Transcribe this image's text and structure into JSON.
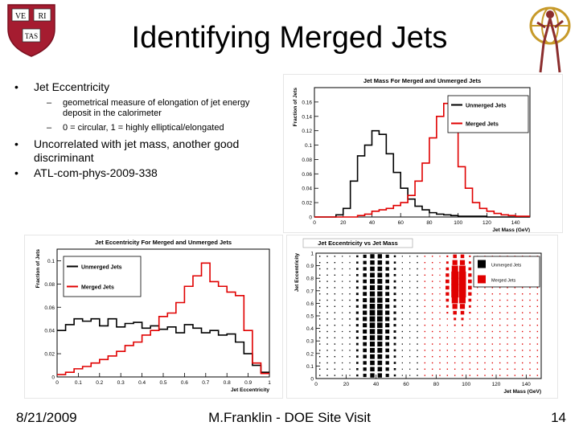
{
  "slide": {
    "title": "Identifying Merged Jets",
    "footer_date": "8/21/2009",
    "footer_center": "M.Franklin - DOE Site Visit",
    "page_number": "14"
  },
  "logo": {
    "shield_top_left": "VE",
    "shield_top_right": "RI",
    "shield_bottom": "TAS"
  },
  "bullets": [
    {
      "text": "Jet Eccentricity",
      "subitems": [
        "geometrical measure of elongation of jet energy deposit in the calorimeter",
        "0 = circular, 1 = highly elliptical/elongated"
      ]
    },
    {
      "text": "Uncorrelated with jet mass, another good discriminant"
    },
    {
      "text": "ATL-com-phys-2009-338"
    }
  ],
  "colors": {
    "unmerged": "#000000",
    "merged": "#e00000"
  },
  "chart_data": [
    {
      "type": "line",
      "title": "Jet Mass For Merged and Unmerged Jets",
      "xlabel": "Jet Mass (GeV)",
      "ylabel": "Fraction of Jets",
      "xlim": [
        0,
        150
      ],
      "ylim": [
        0,
        0.18
      ],
      "xticks": [
        0,
        20,
        40,
        60,
        80,
        100,
        120,
        140
      ],
      "xtick_labels": [
        "0",
        "20",
        "40",
        "60",
        "80",
        "100",
        "120",
        "140"
      ],
      "yticks": [
        0,
        0.02,
        0.04,
        0.06,
        0.08,
        0.1,
        0.12,
        0.14,
        0.16
      ],
      "ytick_labels": [
        "0",
        "0.02",
        "0.04",
        "0.06",
        "0.08",
        "0.1",
        "0.12",
        "0.14",
        "0.16"
      ],
      "bin_width": 5,
      "x": [
        0,
        5,
        10,
        15,
        20,
        25,
        30,
        35,
        40,
        45,
        50,
        55,
        60,
        65,
        70,
        75,
        80,
        85,
        90,
        95,
        100,
        105,
        110,
        115,
        120,
        125,
        130,
        135,
        140,
        145
      ],
      "series": [
        {
          "name": "Unmerged Jets",
          "color": "#000000",
          "values": [
            0,
            0,
            0,
            0.003,
            0.012,
            0.05,
            0.085,
            0.1,
            0.12,
            0.115,
            0.088,
            0.062,
            0.04,
            0.025,
            0.015,
            0.01,
            0.006,
            0.004,
            0.003,
            0.002,
            0.001,
            0.001,
            0.001,
            0.001,
            0,
            0,
            0,
            0,
            0,
            0
          ]
        },
        {
          "name": "Merged Jets",
          "color": "#e00000",
          "values": [
            0,
            0,
            0,
            0,
            0,
            0,
            0.002,
            0.004,
            0.008,
            0.01,
            0.012,
            0.016,
            0.02,
            0.03,
            0.05,
            0.075,
            0.11,
            0.14,
            0.158,
            0.12,
            0.07,
            0.04,
            0.02,
            0.012,
            0.008,
            0.005,
            0.003,
            0.002,
            0.001,
            0.001
          ]
        }
      ]
    },
    {
      "type": "line",
      "title": "Jet Eccentricity For Merged and Unmerged Jets",
      "xlabel": "Jet Eccentricity",
      "ylabel": "Fraction of Jets",
      "xlim": [
        0,
        1
      ],
      "ylim": [
        0,
        0.11
      ],
      "xticks": [
        0,
        0.1,
        0.2,
        0.3,
        0.4,
        0.5,
        0.6,
        0.7,
        0.8,
        0.9,
        1
      ],
      "xtick_labels": [
        "0",
        "0.1",
        "0.2",
        "0.3",
        "0.4",
        "0.5",
        "0.6",
        "0.7",
        "0.8",
        "0.9",
        "1"
      ],
      "yticks": [
        0,
        0.02,
        0.04,
        0.06,
        0.08,
        0.1
      ],
      "ytick_labels": [
        "0",
        "0.02",
        "0.04",
        "0.06",
        "0.08",
        "0.1"
      ],
      "bin_width": 0.04,
      "x": [
        0,
        0.04,
        0.08,
        0.12,
        0.16,
        0.2,
        0.24,
        0.28,
        0.32,
        0.36,
        0.4,
        0.44,
        0.48,
        0.52,
        0.56,
        0.6,
        0.64,
        0.68,
        0.72,
        0.76,
        0.8,
        0.84,
        0.88,
        0.92,
        0.96
      ],
      "series": [
        {
          "name": "Unmerged Jets",
          "color": "#000000",
          "values": [
            0.04,
            0.045,
            0.05,
            0.048,
            0.05,
            0.044,
            0.05,
            0.043,
            0.046,
            0.047,
            0.042,
            0.044,
            0.041,
            0.043,
            0.038,
            0.045,
            0.042,
            0.038,
            0.04,
            0.036,
            0.037,
            0.03,
            0.02,
            0.01,
            0.004
          ]
        },
        {
          "name": "Merged Jets",
          "color": "#e00000",
          "values": [
            0.002,
            0.004,
            0.007,
            0.009,
            0.012,
            0.015,
            0.018,
            0.022,
            0.027,
            0.03,
            0.036,
            0.04,
            0.052,
            0.055,
            0.064,
            0.078,
            0.087,
            0.098,
            0.082,
            0.078,
            0.073,
            0.07,
            0.04,
            0.012,
            0.003
          ]
        }
      ]
    },
    {
      "type": "scatter",
      "title": "Jet Eccentricity vs Jet Mass",
      "xlabel": "Jet Mass (GeV)",
      "ylabel": "Jet Eccentricity",
      "xlim": [
        0,
        150
      ],
      "ylim": [
        0,
        1
      ],
      "xticks": [
        0,
        20,
        40,
        60,
        80,
        100,
        120,
        140
      ],
      "xtick_labels": [
        "0",
        "20",
        "40",
        "60",
        "80",
        "100",
        "120",
        "140"
      ],
      "yticks": [
        0,
        0.1,
        0.2,
        0.3,
        0.4,
        0.5,
        0.6,
        0.7,
        0.8,
        0.9,
        1
      ],
      "ytick_labels": [
        "0",
        "0.1",
        "0.2",
        "0.3",
        "0.4",
        "0.5",
        "0.6",
        "0.7",
        "0.8",
        "0.9",
        "1"
      ],
      "series": [
        {
          "name": "Unmerged Jets",
          "color": "#000000",
          "mass_peak": 40,
          "ecc_spread": "flat"
        },
        {
          "name": "Merged Jets",
          "color": "#e00000",
          "mass_peak": 95,
          "ecc_peak": 0.75
        }
      ]
    }
  ]
}
